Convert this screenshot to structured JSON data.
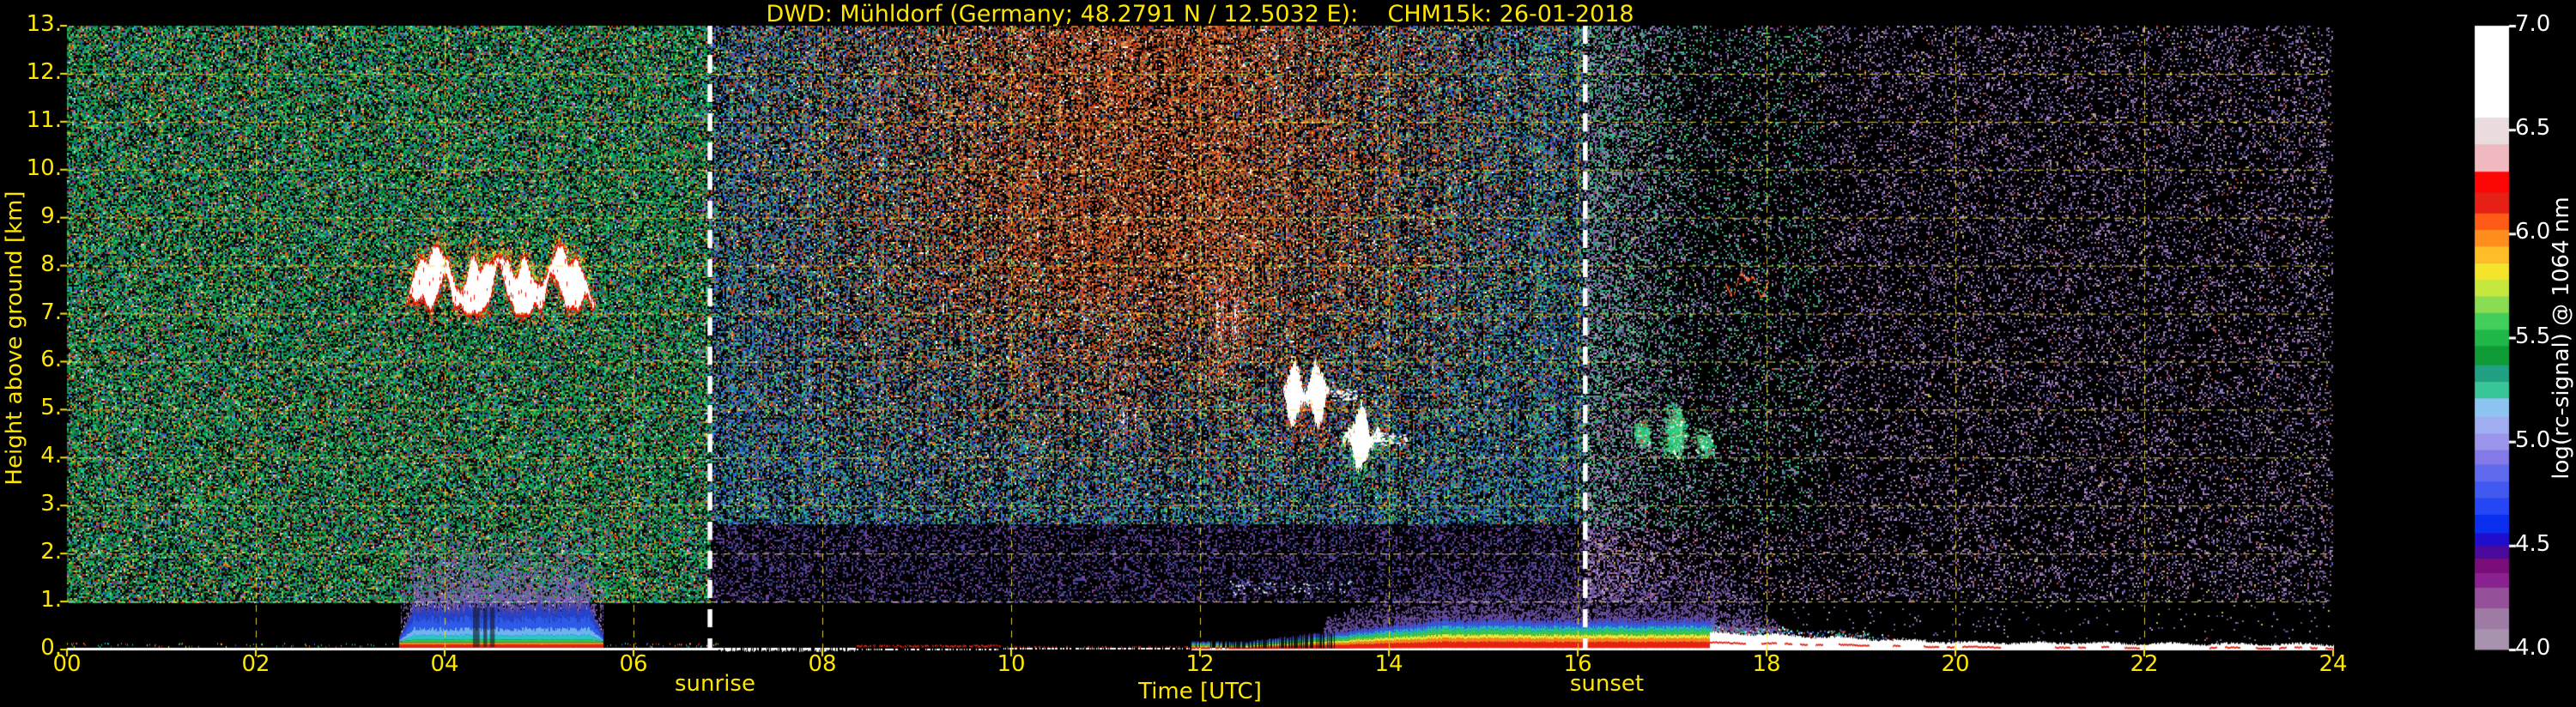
{
  "title": "DWD: Mühldorf (Germany; 48.2791 N / 12.5032 E):    CHM15k: 26-01-2018",
  "colors": {
    "background": "#000000",
    "label_yellow": "#FFE600",
    "grid_yellow": "#EFDF3C",
    "sun_line_white": "#FFFFFF",
    "colorbar_text": "#FFFFFF"
  },
  "chart_data": {
    "type": "heatmap",
    "title": "DWD: Mühldorf (Germany; 48.2791 N / 12.5032 E):    CHM15k: 26-01-2018",
    "xlabel": "Time [UTC]",
    "ylabel": "Height above ground [km]",
    "x_range_hours": [
      0,
      24
    ],
    "y_range_km": [
      0,
      13
    ],
    "x_ticks": [
      {
        "label": "00",
        "hour": 0
      },
      {
        "label": "02",
        "hour": 2
      },
      {
        "label": "04",
        "hour": 4
      },
      {
        "label": "06",
        "hour": 6
      },
      {
        "label": "08",
        "hour": 8
      },
      {
        "label": "10",
        "hour": 10
      },
      {
        "label": "12",
        "hour": 12
      },
      {
        "label": "14",
        "hour": 14
      },
      {
        "label": "16",
        "hour": 16
      },
      {
        "label": "18",
        "hour": 18
      },
      {
        "label": "20",
        "hour": 20
      },
      {
        "label": "22",
        "hour": 22
      },
      {
        "label": "24",
        "hour": 24
      }
    ],
    "y_ticks": [
      {
        "label": "0.",
        "km": 0
      },
      {
        "label": "1.",
        "km": 1
      },
      {
        "label": "2.",
        "km": 2
      },
      {
        "label": "3.",
        "km": 3
      },
      {
        "label": "4.",
        "km": 4
      },
      {
        "label": "5.",
        "km": 5
      },
      {
        "label": "6.",
        "km": 6
      },
      {
        "label": "7.",
        "km": 7
      },
      {
        "label": "8.",
        "km": 8
      },
      {
        "label": "9.",
        "km": 9
      },
      {
        "label": "10.",
        "km": 10
      },
      {
        "label": "11.",
        "km": 11
      },
      {
        "label": "12.",
        "km": 12
      },
      {
        "label": "13.",
        "km": 13
      }
    ],
    "grid": {
      "horizontal_every_km": 1,
      "vertical_every_hours": 2,
      "style": "dashed"
    },
    "sun_markers": {
      "sunrise": {
        "label": "sunrise",
        "hour_utc": 6.81
      },
      "sunset": {
        "label": "sunset",
        "hour_utc": 16.08
      }
    },
    "colorbar": {
      "label": "log(rc-signal) @ 1064 nm",
      "range": [
        4.0,
        7.0
      ],
      "ticks": [
        {
          "label": "7.0",
          "value": 7.0
        },
        {
          "label": "6.5",
          "value": 6.5
        },
        {
          "label": "6.0",
          "value": 6.0
        },
        {
          "label": "5.5",
          "value": 5.5
        },
        {
          "label": "5.0",
          "value": 5.0
        },
        {
          "label": "4.5",
          "value": 4.5
        },
        {
          "label": "4.0",
          "value": 4.0
        }
      ],
      "stops": [
        [
          4.0,
          "#A893AE"
        ],
        [
          4.1,
          "#9E7BA5"
        ],
        [
          4.2,
          "#945199"
        ],
        [
          4.3,
          "#8A2190"
        ],
        [
          4.37,
          "#7A0D79"
        ],
        [
          4.44,
          "#4B0A9B"
        ],
        [
          4.5,
          "#1F0ECD"
        ],
        [
          4.56,
          "#0B2FEE"
        ],
        [
          4.65,
          "#2546F4"
        ],
        [
          4.73,
          "#4159F0"
        ],
        [
          4.81,
          "#5F6AEF"
        ],
        [
          4.89,
          "#8379E8"
        ],
        [
          4.96,
          "#9B96EC"
        ],
        [
          5.04,
          "#A0ADF0"
        ],
        [
          5.12,
          "#8EC4F2"
        ],
        [
          5.21,
          "#38C598"
        ],
        [
          5.29,
          "#22A083"
        ],
        [
          5.37,
          "#0F9B36"
        ],
        [
          5.46,
          "#1EB748"
        ],
        [
          5.54,
          "#43CF5C"
        ],
        [
          5.62,
          "#8ADC52"
        ],
        [
          5.7,
          "#C6E83E"
        ],
        [
          5.78,
          "#F4E42C"
        ],
        [
          5.86,
          "#FFBE28"
        ],
        [
          5.94,
          "#FF8E1E"
        ],
        [
          6.02,
          "#FF5A16"
        ],
        [
          6.1,
          "#E62014"
        ],
        [
          6.2,
          "#FC0606"
        ],
        [
          6.3,
          "#EFB9BF"
        ],
        [
          6.43,
          "#EBDCDF"
        ],
        [
          6.56,
          "#FFFFFF"
        ]
      ]
    },
    "noise_regions": {
      "night_early": {
        "t": [
          0,
          6.81
        ],
        "h_min": 0.93,
        "density": 0.8,
        "palette": [
          [
            "#0E9C4A",
            18
          ],
          [
            "#0B7C3C",
            13
          ],
          [
            "#17B45E",
            9
          ],
          [
            "#35D57F",
            6
          ],
          [
            "#0E8E6C",
            6
          ],
          [
            "#136C2E",
            8
          ],
          [
            "#BFC020",
            4
          ],
          [
            "#DE9C1C",
            3
          ],
          [
            "#C94414",
            4
          ],
          [
            "#A81E0E",
            3
          ],
          [
            "#FF5A1E",
            2
          ],
          [
            "#2750C4",
            4
          ],
          [
            "#3E78E2",
            3
          ],
          [
            "#1FB4C4",
            3
          ],
          [
            "#7F3FA0",
            3
          ],
          [
            "#BE4FBE",
            2
          ],
          [
            "#D8D8D8",
            2
          ],
          [
            "#0A1E14",
            17
          ]
        ]
      },
      "daytime": {
        "t": [
          6.81,
          16.08
        ],
        "h_min": 0.93,
        "density": 0.66,
        "warm": [
          [
            "#A83818",
            16
          ],
          [
            "#C85020",
            14
          ],
          [
            "#E06828",
            10
          ],
          [
            "#8A4E2E",
            13
          ],
          [
            "#B08048",
            9
          ],
          [
            "#E0A050",
            7
          ],
          [
            "#F2C360",
            4
          ],
          [
            "#FF3A10",
            6
          ],
          [
            "#8E2A16",
            8
          ],
          [
            "#FFFFFF",
            3
          ],
          [
            "#D8D0C0",
            4
          ],
          [
            "#5C2E1A",
            6
          ]
        ],
        "cool": [
          [
            "#1E4FB4",
            14
          ],
          [
            "#2D6AD8",
            10
          ],
          [
            "#3C8CC8",
            6
          ],
          [
            "#2FA060",
            14
          ],
          [
            "#36C478",
            8
          ],
          [
            "#1A7850",
            8
          ],
          [
            "#5A48B0",
            7
          ],
          [
            "#7A58C0",
            5
          ],
          [
            "#20C8B0",
            4
          ],
          [
            "#C8C830",
            3
          ],
          [
            "#D05020",
            3
          ],
          [
            "#122A48",
            18
          ]
        ],
        "low": [
          [
            "#503880",
            30
          ],
          [
            "#6848A0",
            22
          ],
          [
            "#30307C",
            14
          ],
          [
            "#2D4FA8",
            10
          ],
          [
            "#843E98",
            8
          ],
          [
            "#101020",
            16
          ]
        ]
      },
      "night_late": {
        "t": [
          16.08,
          24
        ],
        "h_min": 1.0,
        "density": 0.2,
        "palette": [
          [
            "#8868A8",
            26
          ],
          [
            "#A888C8",
            16
          ],
          [
            "#6A4E90",
            16
          ],
          [
            "#5060C0",
            6
          ],
          [
            "#C0A0D0",
            6
          ],
          [
            "#D04830",
            3
          ],
          [
            "#C8C840",
            3
          ],
          [
            "#9070B0",
            12
          ],
          [
            "#604878",
            12
          ]
        ],
        "greens": [
          [
            "#2FA862",
            40
          ],
          [
            "#36C478",
            25
          ],
          [
            "#1A7850",
            20
          ],
          [
            "#20C8A0",
            15
          ]
        ]
      }
    },
    "features": [
      {
        "kind": "surface_line",
        "name": "surface echo line",
        "t": [
          0,
          24
        ],
        "color": "#FFFFFF",
        "accents": [
          "#E82010",
          "#FF8020",
          "#F0E832",
          "#38C84F",
          "#28C8C8",
          "#4868E8"
        ]
      },
      {
        "kind": "bl_block",
        "name": "boundary-layer cloud with drizzle",
        "t": [
          3.52,
          5.68
        ],
        "haze_top_km": 2.4,
        "bands": [
          [
            "#FFFFFF",
            0.04
          ],
          [
            "#E82010",
            0.1
          ],
          [
            "#FF8020",
            0.15
          ],
          [
            "#38C84F",
            0.21
          ],
          [
            "#28C8C8",
            0.3
          ],
          [
            "#6FB4F2",
            0.44
          ],
          [
            "#2D5AE8",
            0.66
          ],
          [
            "#2442CD",
            0.82
          ],
          [
            "#4A46AE",
            0.95
          ]
        ],
        "haze_color": "#7A5FB0",
        "gaps": [
          [
            4.3,
            4.37
          ],
          [
            4.41,
            4.45
          ],
          [
            4.48,
            4.53
          ]
        ]
      },
      {
        "kind": "cirrus",
        "name": "cirrus cloud band 7-8.5 km",
        "t": [
          3.55,
          5.62
        ],
        "h_base": 7.0,
        "h_top": 8.45,
        "core": "#FFFFFF",
        "edge": "#E51A00",
        "fringe": [
          [
            "#E51A00",
            30
          ],
          [
            "#FF8C1E",
            25
          ],
          [
            "#F2E42C",
            20
          ],
          [
            "#3FC05A",
            25
          ]
        ]
      },
      {
        "kind": "streaks",
        "name": "faint virga streaks",
        "t": [
          11.08,
          11.35
        ],
        "h": [
          4.0,
          5.35
        ],
        "density": 0.1,
        "palette": [
          [
            "#FFFFFF",
            50
          ],
          [
            "#D84020",
            30
          ],
          [
            "#FF8860",
            20
          ]
        ]
      },
      {
        "kind": "streaks",
        "name": "precipitating virga",
        "t": [
          12.03,
          12.4
        ],
        "h": [
          5.35,
          8.1
        ],
        "density": 0.22,
        "palette": [
          [
            "#E03018",
            55
          ],
          [
            "#FFFFFF",
            25
          ],
          [
            "#FF7030",
            20
          ]
        ]
      },
      {
        "kind": "cloud_blob",
        "name": "mid-level cloud",
        "t": [
          12.85,
          13.4
        ],
        "h": [
          4.75,
          5.9
        ],
        "core": "#FFFFFF",
        "fringe": [
          [
            "#E04020",
            50
          ],
          [
            "#FF9030",
            30
          ],
          [
            "#F2E42C",
            20
          ]
        ],
        "tail_h": [
          4.2,
          4.9
        ]
      },
      {
        "kind": "cloud_blob",
        "name": "mid-level cloud",
        "t": [
          13.5,
          13.92
        ],
        "h": [
          3.8,
          5.0
        ],
        "core": "#FFFFFF",
        "fringe": [
          [
            "#30C060",
            40
          ],
          [
            "#E8E040",
            25
          ],
          [
            "#E04830",
            20
          ],
          [
            "#28C8C8",
            15
          ]
        ],
        "tail_h": [
          3.1,
          3.9
        ]
      },
      {
        "kind": "ground_rainbow",
        "name": "afternoon aerosol layer",
        "t": [
          11.9,
          17.45
        ],
        "bands": [
          [
            "#FFFFFF",
            0.05
          ],
          [
            "#E82010",
            0.25
          ],
          [
            "#FF8020",
            0.37
          ],
          [
            "#F0E832",
            0.49
          ],
          [
            "#38C84F",
            0.64
          ],
          [
            "#22B8C8",
            0.76
          ],
          [
            "#3A58E0",
            0.92
          ],
          [
            "#5646AC",
            1.0
          ]
        ],
        "haze_color": "#6A4FA0",
        "dark_cols": [
          12.28,
          13.42
        ]
      },
      {
        "kind": "ground_white",
        "name": "shallow nocturnal layer",
        "t": [
          17.4,
          24
        ],
        "color": "#FFFFFF",
        "accent": "#E02010",
        "fringe": [
          "#2FBE5A",
          "#28C8D0",
          "#E03020",
          "#4868E8",
          "#FFFFFF"
        ]
      },
      {
        "kind": "speckle_cluster",
        "name": "broken mid-level cloud after sunset",
        "clusters": [
          [
            16.68,
            4.5,
            0.07,
            0.22,
            260
          ],
          [
            17.03,
            4.55,
            0.1,
            0.45,
            700
          ],
          [
            17.33,
            4.3,
            0.1,
            0.3,
            180
          ]
        ],
        "palette": [
          [
            "#2FBE62",
            38
          ],
          [
            "#35D57F",
            22
          ],
          [
            "#20C8C0",
            14
          ],
          [
            "#FFFFFF",
            12
          ],
          [
            "#D04020",
            8
          ],
          [
            "#88E8A8",
            6
          ]
        ]
      },
      {
        "kind": "wavy_streak",
        "name": "thin cloud filament",
        "t": [
          17.56,
          18.02
        ],
        "h": [
          7.35,
          7.95
        ],
        "colors": [
          "#FF6A18",
          "#E02810",
          "#FFFFFF"
        ]
      },
      {
        "kind": "white_dots",
        "name": "fog-top speckle",
        "t": [
          12.3,
          13.6
        ],
        "h": [
          1.15,
          1.45
        ],
        "density": 0.08,
        "colors": [
          "#FFFFFF",
          "#BFE8FF"
        ]
      }
    ]
  }
}
